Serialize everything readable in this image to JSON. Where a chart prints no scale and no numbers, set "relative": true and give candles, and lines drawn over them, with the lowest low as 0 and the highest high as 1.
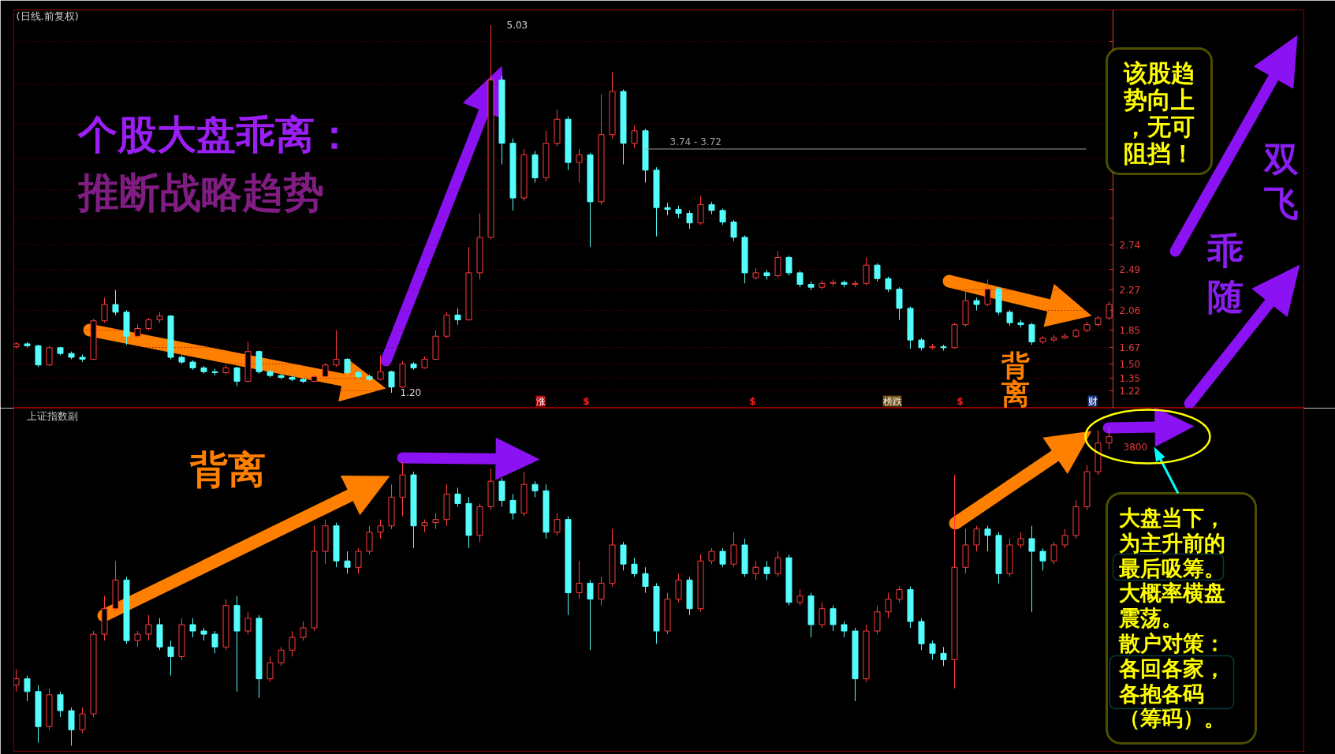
{
  "chart_data": [
    {
      "type": "candlestick",
      "title": "(日线.前复权)",
      "categories": [
        null,
        null,
        null,
        null,
        null,
        null,
        null,
        null,
        null,
        null,
        null,
        null,
        null,
        null,
        null,
        null,
        null,
        null,
        null,
        null,
        null,
        null,
        null,
        null,
        null,
        null,
        null,
        null,
        null,
        null,
        null,
        null,
        null,
        null,
        null,
        null,
        null,
        null,
        null,
        null,
        null,
        null,
        null,
        null,
        null,
        null,
        null,
        null,
        null,
        null,
        null,
        null,
        null,
        null,
        null,
        null,
        null,
        null,
        null,
        null,
        null,
        null,
        null,
        null,
        null,
        null,
        null,
        null,
        null,
        null,
        null,
        null,
        null,
        null,
        null,
        null,
        null,
        null,
        null,
        null,
        null,
        null,
        null,
        null,
        null,
        null,
        null,
        null,
        null,
        null,
        null,
        null,
        null,
        null,
        null,
        null,
        null,
        null,
        null,
        null
      ],
      "ohlc": [
        [
          1.68,
          1.73,
          1.66,
          1.71
        ],
        [
          1.71,
          1.73,
          1.67,
          1.69
        ],
        [
          1.69,
          1.7,
          1.47,
          1.49
        ],
        [
          1.49,
          1.69,
          1.48,
          1.67
        ],
        [
          1.67,
          1.68,
          1.59,
          1.61
        ],
        [
          1.61,
          1.63,
          1.55,
          1.57
        ],
        [
          1.57,
          1.6,
          1.52,
          1.55
        ],
        [
          1.55,
          1.97,
          1.54,
          1.95
        ],
        [
          1.95,
          2.19,
          1.93,
          2.12
        ],
        [
          2.12,
          2.27,
          2.01,
          2.04
        ],
        [
          2.04,
          2.06,
          1.7,
          1.79
        ],
        [
          1.79,
          1.91,
          1.77,
          1.87
        ],
        [
          1.87,
          1.98,
          1.85,
          1.96
        ],
        [
          1.96,
          2.04,
          1.93,
          2.0
        ],
        [
          2.0,
          2.01,
          1.55,
          1.57
        ],
        [
          1.57,
          1.59,
          1.5,
          1.52
        ],
        [
          1.52,
          1.54,
          1.44,
          1.46
        ],
        [
          1.46,
          1.48,
          1.4,
          1.42
        ],
        [
          1.42,
          1.45,
          1.38,
          1.41
        ],
        [
          1.41,
          1.49,
          1.39,
          1.46
        ],
        [
          1.46,
          1.47,
          1.27,
          1.32
        ],
        [
          1.32,
          1.73,
          1.31,
          1.63
        ],
        [
          1.63,
          1.64,
          1.4,
          1.42
        ],
        [
          1.42,
          1.44,
          1.36,
          1.38
        ],
        [
          1.38,
          1.4,
          1.34,
          1.36
        ],
        [
          1.36,
          1.38,
          1.32,
          1.34
        ],
        [
          1.34,
          1.36,
          1.3,
          1.32
        ],
        [
          1.32,
          1.39,
          1.31,
          1.37
        ],
        [
          1.37,
          1.51,
          1.36,
          1.49
        ],
        [
          1.49,
          1.85,
          1.47,
          1.55
        ],
        [
          1.55,
          1.56,
          1.39,
          1.41
        ],
        [
          1.41,
          1.43,
          1.35,
          1.37
        ],
        [
          1.37,
          1.39,
          1.32,
          1.34
        ],
        [
          1.34,
          1.59,
          1.33,
          1.42
        ],
        [
          1.42,
          1.43,
          1.2,
          1.26
        ],
        [
          1.26,
          1.53,
          1.25,
          1.5
        ],
        [
          1.5,
          1.52,
          1.44,
          1.46
        ],
        [
          1.46,
          1.58,
          1.45,
          1.55
        ],
        [
          1.55,
          1.85,
          1.54,
          1.79
        ],
        [
          1.79,
          2.04,
          1.77,
          2.01
        ],
        [
          2.01,
          2.08,
          1.91,
          1.96
        ],
        [
          1.96,
          2.72,
          1.95,
          2.45
        ],
        [
          2.45,
          3.07,
          2.38,
          2.82
        ],
        [
          2.82,
          5.03,
          2.8,
          4.46
        ],
        [
          4.46,
          4.5,
          3.58,
          3.8
        ],
        [
          3.8,
          3.85,
          3.1,
          3.23
        ],
        [
          3.23,
          3.74,
          3.2,
          3.68
        ],
        [
          3.68,
          3.72,
          3.39,
          3.44
        ],
        [
          3.44,
          3.93,
          3.4,
          3.8
        ],
        [
          3.8,
          4.15,
          3.77,
          4.05
        ],
        [
          4.05,
          4.08,
          3.52,
          3.6
        ],
        [
          3.6,
          3.74,
          3.39,
          3.68
        ],
        [
          3.68,
          3.7,
          2.72,
          3.19
        ],
        [
          3.19,
          4.31,
          3.16,
          3.89
        ],
        [
          3.89,
          4.54,
          3.85,
          4.34
        ],
        [
          4.34,
          4.36,
          3.58,
          3.8
        ],
        [
          3.8,
          3.98,
          3.75,
          3.93
        ],
        [
          3.93,
          3.95,
          3.39,
          3.52
        ],
        [
          3.52,
          3.55,
          2.83,
          3.13
        ],
        [
          3.13,
          3.18,
          3.05,
          3.11
        ],
        [
          3.11,
          3.15,
          3.02,
          3.07
        ],
        [
          3.07,
          3.1,
          2.91,
          2.97
        ],
        [
          2.97,
          3.25,
          2.95,
          3.16
        ],
        [
          3.16,
          3.19,
          3.06,
          3.1
        ],
        [
          3.1,
          3.12,
          2.95,
          2.98
        ],
        [
          2.98,
          3.0,
          2.78,
          2.82
        ],
        [
          2.82,
          2.84,
          2.34,
          2.45
        ],
        [
          2.4,
          2.5,
          2.38,
          2.45
        ],
        [
          2.45,
          2.48,
          2.38,
          2.42
        ],
        [
          2.42,
          2.68,
          2.4,
          2.61
        ],
        [
          2.61,
          2.63,
          2.42,
          2.45
        ],
        [
          2.45,
          2.47,
          2.3,
          2.33
        ],
        [
          2.33,
          2.36,
          2.27,
          2.3
        ],
        [
          2.3,
          2.37,
          2.28,
          2.34
        ],
        [
          2.34,
          2.38,
          2.31,
          2.35
        ],
        [
          2.35,
          2.37,
          2.3,
          2.33
        ],
        [
          2.33,
          2.37,
          2.3,
          2.34
        ],
        [
          2.34,
          2.61,
          2.32,
          2.53
        ],
        [
          2.53,
          2.55,
          2.36,
          2.39
        ],
        [
          2.39,
          2.41,
          2.25,
          2.28
        ],
        [
          2.28,
          2.3,
          1.96,
          2.08
        ],
        [
          2.08,
          2.1,
          1.66,
          1.75
        ],
        [
          1.75,
          1.77,
          1.64,
          1.67
        ],
        [
          1.67,
          1.71,
          1.65,
          1.68
        ],
        [
          1.68,
          1.7,
          1.64,
          1.67
        ],
        [
          1.67,
          1.93,
          1.66,
          1.91
        ],
        [
          1.91,
          2.27,
          1.89,
          2.16
        ],
        [
          2.16,
          2.19,
          2.06,
          2.12
        ],
        [
          2.12,
          2.38,
          2.1,
          2.28
        ],
        [
          2.28,
          2.3,
          2.01,
          2.04
        ],
        [
          2.04,
          2.06,
          1.9,
          1.93
        ],
        [
          1.93,
          1.96,
          1.88,
          1.91
        ],
        [
          1.91,
          1.93,
          1.7,
          1.73
        ],
        [
          1.73,
          1.79,
          1.71,
          1.77
        ],
        [
          1.75,
          1.8,
          1.73,
          1.77
        ],
        [
          1.77,
          1.82,
          1.76,
          1.79
        ],
        [
          1.79,
          1.87,
          1.77,
          1.85
        ],
        [
          1.85,
          1.94,
          1.83,
          1.91
        ],
        [
          1.91,
          2.0,
          1.89,
          1.98
        ],
        [
          1.98,
          2.15,
          1.96,
          2.12
        ]
      ],
      "colors": [
        "#ff3c3c",
        "#54fcfc",
        "#54fcfc",
        "#ff3c3c",
        "#54fcfc",
        "#54fcfc",
        "#54fcfc",
        "#ff3c3c",
        "#ff3c3c",
        "#54fcfc",
        "#54fcfc",
        "#ff3c3c",
        "#ff3c3c",
        "#ff3c3c",
        "#54fcfc",
        "#54fcfc",
        "#54fcfc",
        "#54fcfc",
        "#54fcfc",
        "#ff3c3c",
        "#54fcfc",
        "#ff3c3c",
        "#54fcfc",
        "#54fcfc",
        "#54fcfc",
        "#54fcfc",
        "#54fcfc",
        "#ff3c3c",
        "#ff3c3c",
        "#ff3c3c",
        "#54fcfc",
        "#54fcfc",
        "#54fcfc",
        "#ff3c3c",
        "#54fcfc",
        "#ff3c3c",
        "#54fcfc",
        "#ff3c3c",
        "#ff3c3c",
        "#ff3c3c",
        "#54fcfc",
        "#ff3c3c",
        "#ff3c3c",
        "#ff3c3c",
        "#54fcfc",
        "#54fcfc",
        "#ff3c3c",
        "#54fcfc",
        "#ff3c3c",
        "#ff3c3c",
        "#54fcfc",
        "#ff3c3c",
        "#54fcfc",
        "#ff3c3c",
        "#ff3c3c",
        "#54fcfc",
        "#ff3c3c",
        "#54fcfc",
        "#54fcfc",
        "#54fcfc",
        "#54fcfc",
        "#54fcfc",
        "#ff3c3c",
        "#54fcfc",
        "#54fcfc",
        "#54fcfc",
        "#54fcfc",
        "#ff3c3c",
        "#54fcfc",
        "#ff3c3c",
        "#54fcfc",
        "#54fcfc",
        "#54fcfc",
        "#ff3c3c",
        "#ff3c3c",
        "#54fcfc",
        "#ff3c3c",
        "#ff3c3c",
        "#54fcfc",
        "#54fcfc",
        "#54fcfc",
        "#54fcfc",
        "#54fcfc",
        "#ff3c3c",
        "#54fcfc",
        "#ff3c3c",
        "#ff3c3c",
        "#54fcfc",
        "#ff3c3c",
        "#54fcfc",
        "#54fcfc",
        "#54fcfc",
        "#54fcfc",
        "#ff3c3c",
        "#ff3c3c",
        "#ff3c3c",
        "#ff3c3c",
        "#ff3c3c",
        "#ff3c3c",
        "#ff3c3c"
      ],
      "ylim": [
        1.04,
        5.19
      ],
      "yticks": [
        1.22,
        1.35,
        {
          "value": 1.5,
          "label": "1.50"
        },
        1.67,
        1.85,
        2.06,
        2.27,
        2.49,
        2.74,
        {
          "value": 3.02,
          "label": null
        },
        {
          "value": 3.32,
          "label": null
        },
        {
          "value": 3.64,
          "label": null
        },
        {
          "value": 4,
          "label": null
        },
        {
          "value": 4.41,
          "label": null
        },
        {
          "value": 4.86,
          "label": null
        }
      ],
      "grid": "y",
      "ref_lines": [
        {
          "axis": "y",
          "value": 3.74,
          "label": "3.74 - 3.72",
          "color": "#a0a0a0"
        }
      ],
      "annotations": [
        "个股大盘乖离：",
        "推断战略趋势",
        "5.03",
        "1.20",
        "该股趋势向上，无可阻挡！",
        "双飞",
        "乖随",
        "背离",
        "涨",
        "$",
        "$",
        "榜跌",
        "$",
        "财"
      ]
    },
    {
      "type": "candlestick",
      "title": "上证指数副",
      "relative": true,
      "categories": [
        null,
        null,
        null,
        null,
        null,
        null,
        null,
        null,
        null,
        null,
        null,
        null,
        null,
        null,
        null,
        null,
        null,
        null,
        null,
        null,
        null,
        null,
        null,
        null,
        null,
        null,
        null,
        null,
        null,
        null,
        null,
        null,
        null,
        null,
        null,
        null,
        null,
        null,
        null,
        null,
        null,
        null,
        null,
        null,
        null,
        null,
        null,
        null,
        null,
        null,
        null,
        null,
        null,
        null,
        null,
        null,
        null,
        null,
        null,
        null,
        null,
        null,
        null,
        null,
        null,
        null,
        null,
        null,
        null,
        null,
        null,
        null,
        null,
        null,
        null,
        null,
        null,
        null,
        null,
        null,
        null,
        null,
        null,
        null,
        null,
        null,
        null,
        null,
        null,
        null,
        null,
        null,
        null,
        null,
        null,
        null,
        null,
        null,
        null,
        null
      ],
      "ohlc": [
        [
          0.19,
          0.24,
          0.17,
          0.21
        ],
        [
          0.21,
          0.22,
          0.14,
          0.17
        ],
        [
          0.17,
          0.19,
          0.01,
          0.06
        ],
        [
          0.06,
          0.18,
          0.05,
          0.16
        ],
        [
          0.16,
          0.17,
          0.09,
          0.11
        ],
        [
          0.11,
          0.12,
          0,
          0.05
        ],
        [
          0.05,
          0.12,
          0.04,
          0.1
        ],
        [
          0.1,
          0.36,
          0.09,
          0.35
        ],
        [
          0.35,
          0.47,
          0.33,
          0.43
        ],
        [
          0.43,
          0.58,
          0.42,
          0.52
        ],
        [
          0.52,
          0.53,
          0.32,
          0.33
        ],
        [
          0.33,
          0.36,
          0.31,
          0.35
        ],
        [
          0.35,
          0.41,
          0.33,
          0.38
        ],
        [
          0.38,
          0.4,
          0.3,
          0.31
        ],
        [
          0.31,
          0.33,
          0.22,
          0.28
        ],
        [
          0.28,
          0.4,
          0.27,
          0.38
        ],
        [
          0.38,
          0.4,
          0.34,
          0.36
        ],
        [
          0.36,
          0.37,
          0.33,
          0.35
        ],
        [
          0.35,
          0.36,
          0.29,
          0.31
        ],
        [
          0.31,
          0.46,
          0.3,
          0.44
        ],
        [
          0.44,
          0.47,
          0.17,
          0.36
        ],
        [
          0.36,
          0.42,
          0.35,
          0.4
        ],
        [
          0.4,
          0.41,
          0.15,
          0.21
        ],
        [
          0.21,
          0.28,
          0.2,
          0.26
        ],
        [
          0.26,
          0.31,
          0.25,
          0.3
        ],
        [
          0.3,
          0.36,
          0.28,
          0.34
        ],
        [
          0.34,
          0.39,
          0.33,
          0.37
        ],
        [
          0.37,
          0.69,
          0.36,
          0.61
        ],
        [
          0.61,
          0.71,
          0.57,
          0.69
        ],
        [
          0.69,
          0.7,
          0.56,
          0.58
        ],
        [
          0.58,
          0.61,
          0.54,
          0.56
        ],
        [
          0.56,
          0.62,
          0.54,
          0.61
        ],
        [
          0.61,
          0.69,
          0.6,
          0.67
        ],
        [
          0.67,
          0.71,
          0.65,
          0.69
        ],
        [
          0.69,
          0.82,
          0.68,
          0.78
        ],
        [
          0.78,
          0.89,
          0.72,
          0.85
        ],
        [
          0.85,
          0.86,
          0.62,
          0.69
        ],
        [
          0.69,
          0.71,
          0.67,
          0.7
        ],
        [
          0.7,
          0.73,
          0.68,
          0.71
        ],
        [
          0.71,
          0.82,
          0.69,
          0.79
        ],
        [
          0.79,
          0.81,
          0.75,
          0.76
        ],
        [
          0.76,
          0.78,
          0.62,
          0.66
        ],
        [
          0.66,
          0.76,
          0.64,
          0.75
        ],
        [
          0.75,
          0.87,
          0.74,
          0.83
        ],
        [
          0.83,
          0.84,
          0.75,
          0.77
        ],
        [
          0.77,
          0.79,
          0.71,
          0.73
        ],
        [
          0.73,
          0.86,
          0.72,
          0.82
        ],
        [
          0.82,
          0.83,
          0.78,
          0.8
        ],
        [
          0.8,
          0.82,
          0.65,
          0.67
        ],
        [
          0.67,
          0.73,
          0.66,
          0.71
        ],
        [
          0.71,
          0.72,
          0.41,
          0.48
        ],
        [
          0.48,
          0.58,
          0.46,
          0.51
        ],
        [
          0.51,
          0.52,
          0.3,
          0.46
        ],
        [
          0.46,
          0.53,
          0.44,
          0.51
        ],
        [
          0.51,
          0.68,
          0.5,
          0.63
        ],
        [
          0.63,
          0.64,
          0.55,
          0.57
        ],
        [
          0.57,
          0.59,
          0.53,
          0.54
        ],
        [
          0.54,
          0.56,
          0.48,
          0.5
        ],
        [
          0.5,
          0.51,
          0.32,
          0.36
        ],
        [
          0.36,
          0.48,
          0.35,
          0.46
        ],
        [
          0.46,
          0.54,
          0.45,
          0.52
        ],
        [
          0.52,
          0.53,
          0.41,
          0.43
        ],
        [
          0.43,
          0.6,
          0.42,
          0.58
        ],
        [
          0.58,
          0.62,
          0.57,
          0.61
        ],
        [
          0.61,
          0.62,
          0.56,
          0.57
        ],
        [
          0.57,
          0.67,
          0.56,
          0.63
        ],
        [
          0.63,
          0.65,
          0.53,
          0.54
        ],
        [
          0.54,
          0.58,
          0.52,
          0.56
        ],
        [
          0.56,
          0.58,
          0.52,
          0.54
        ],
        [
          0.54,
          0.61,
          0.53,
          0.59
        ],
        [
          0.59,
          0.6,
          0.44,
          0.45
        ],
        [
          0.45,
          0.49,
          0.44,
          0.47
        ],
        [
          0.47,
          0.48,
          0.34,
          0.38
        ],
        [
          0.38,
          0.45,
          0.37,
          0.43
        ],
        [
          0.43,
          0.44,
          0.36,
          0.38
        ],
        [
          0.38,
          0.39,
          0.34,
          0.36
        ],
        [
          0.36,
          0.37,
          0.14,
          0.21
        ],
        [
          0.21,
          0.38,
          0.2,
          0.36
        ],
        [
          0.36,
          0.44,
          0.35,
          0.42
        ],
        [
          0.42,
          0.48,
          0.4,
          0.46
        ],
        [
          0.46,
          0.5,
          0.45,
          0.49
        ],
        [
          0.49,
          0.5,
          0.37,
          0.39
        ],
        [
          0.39,
          0.4,
          0.3,
          0.32
        ],
        [
          0.32,
          0.33,
          0.27,
          0.29
        ],
        [
          0.29,
          0.31,
          0.25,
          0.27
        ],
        [
          0.27,
          0.85,
          0.18,
          0.56
        ],
        [
          0.56,
          0.68,
          0.54,
          0.63
        ],
        [
          0.63,
          0.69,
          0.61,
          0.68
        ],
        [
          0.68,
          0.69,
          0.61,
          0.66
        ],
        [
          0.66,
          0.67,
          0.51,
          0.54
        ],
        [
          0.54,
          0.65,
          0.53,
          0.63
        ],
        [
          0.63,
          0.67,
          0.62,
          0.65
        ],
        [
          0.65,
          0.69,
          0.42,
          0.61
        ],
        [
          0.61,
          0.62,
          0.55,
          0.58
        ],
        [
          0.58,
          0.64,
          0.57,
          0.63
        ],
        [
          0.63,
          0.68,
          0.62,
          0.66
        ],
        [
          0.66,
          0.77,
          0.65,
          0.75
        ],
        [
          0.75,
          0.88,
          0.74,
          0.86
        ],
        [
          0.86,
          0.99,
          0.85,
          0.95
        ],
        [
          0.95,
          1,
          0.93,
          0.97
        ]
      ],
      "colors": [
        "#ff3c3c",
        "#54fcfc",
        "#54fcfc",
        "#ff3c3c",
        "#54fcfc",
        "#54fcfc",
        "#ff3c3c",
        "#ff3c3c",
        "#ff3c3c",
        "#ff3c3c",
        "#54fcfc",
        "#ff3c3c",
        "#ff3c3c",
        "#54fcfc",
        "#54fcfc",
        "#ff3c3c",
        "#54fcfc",
        "#54fcfc",
        "#54fcfc",
        "#ff3c3c",
        "#54fcfc",
        "#ff3c3c",
        "#54fcfc",
        "#ff3c3c",
        "#ff3c3c",
        "#ff3c3c",
        "#ff3c3c",
        "#ff3c3c",
        "#ff3c3c",
        "#54fcfc",
        "#54fcfc",
        "#ff3c3c",
        "#ff3c3c",
        "#ff3c3c",
        "#ff3c3c",
        "#ff3c3c",
        "#54fcfc",
        "#ff3c3c",
        "#ff3c3c",
        "#ff3c3c",
        "#54fcfc",
        "#54fcfc",
        "#ff3c3c",
        "#ff3c3c",
        "#54fcfc",
        "#54fcfc",
        "#ff3c3c",
        "#54fcfc",
        "#54fcfc",
        "#ff3c3c",
        "#54fcfc",
        "#ff3c3c",
        "#54fcfc",
        "#ff3c3c",
        "#ff3c3c",
        "#54fcfc",
        "#54fcfc",
        "#54fcfc",
        "#54fcfc",
        "#ff3c3c",
        "#ff3c3c",
        "#54fcfc",
        "#ff3c3c",
        "#ff3c3c",
        "#54fcfc",
        "#ff3c3c",
        "#54fcfc",
        "#ff3c3c",
        "#54fcfc",
        "#ff3c3c",
        "#54fcfc",
        "#ff3c3c",
        "#54fcfc",
        "#ff3c3c",
        "#54fcfc",
        "#54fcfc",
        "#54fcfc",
        "#ff3c3c",
        "#ff3c3c",
        "#ff3c3c",
        "#ff3c3c",
        "#54fcfc",
        "#54fcfc",
        "#54fcfc",
        "#54fcfc",
        "#ff3c3c",
        "#ff3c3c",
        "#ff3c3c",
        "#54fcfc",
        "#54fcfc",
        "#ff3c3c",
        "#ff3c3c",
        "#54fcfc",
        "#54fcfc",
        "#ff3c3c",
        "#ff3c3c",
        "#ff3c3c",
        "#ff3c3c",
        "#ff3c3c",
        "#ff3c3c"
      ],
      "annotations": [
        "背离",
        "大盘当下，为主升前的最后吸筹。大概率横盘震荡。散户对策：各回各家，各抱各码（筹码）。",
        "3800"
      ]
    }
  ]
}
